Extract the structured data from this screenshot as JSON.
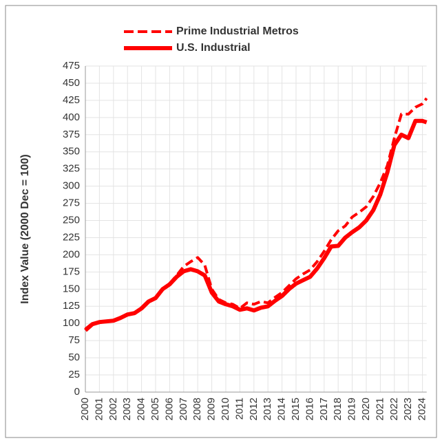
{
  "chart_data": {
    "type": "line",
    "ylabel": "Index Value (2000 Dec = 100)",
    "x": [
      2000,
      2000.5,
      2001,
      2001.5,
      2002,
      2002.5,
      2003,
      2003.5,
      2004,
      2004.5,
      2005,
      2005.5,
      2006,
      2006.5,
      2007,
      2007.5,
      2008,
      2008.5,
      2009,
      2009.5,
      2010,
      2010.5,
      2011,
      2011.5,
      2012,
      2012.5,
      2013,
      2013.5,
      2014,
      2014.5,
      2015,
      2015.5,
      2016,
      2016.5,
      2017,
      2017.5,
      2018,
      2018.5,
      2019,
      2019.5,
      2020,
      2020.5,
      2021,
      2021.5,
      2022,
      2022.5,
      2023,
      2023.5,
      2024,
      2024.3
    ],
    "series": [
      {
        "name": "Prime Industrial Metros",
        "color": "#ff0000",
        "dashed": true,
        "values": [
          92,
          100,
          101,
          103,
          104,
          108,
          114,
          115,
          122,
          132,
          138,
          150,
          158,
          170,
          183,
          190,
          196,
          185,
          150,
          135,
          130,
          128,
          122,
          130,
          128,
          132,
          130,
          138,
          145,
          155,
          165,
          172,
          178,
          190,
          205,
          222,
          235,
          242,
          255,
          262,
          270,
          285,
          305,
          330,
          370,
          405,
          405,
          415,
          420,
          428
        ]
      },
      {
        "name": "U.S. Industrial",
        "color": "#ff0000",
        "dashed": false,
        "values": [
          90,
          99,
          102,
          103,
          104,
          108,
          113,
          115,
          122,
          132,
          137,
          150,
          157,
          168,
          176,
          179,
          176,
          170,
          145,
          132,
          128,
          125,
          120,
          122,
          119,
          123,
          125,
          133,
          140,
          150,
          158,
          163,
          168,
          180,
          195,
          212,
          213,
          225,
          233,
          240,
          250,
          265,
          288,
          320,
          360,
          375,
          370,
          395,
          395,
          393
        ]
      }
    ],
    "xlim": [
      2000,
      2024.3
    ],
    "xticks": [
      2000,
      2001,
      2002,
      2003,
      2004,
      2005,
      2006,
      2007,
      2008,
      2009,
      2010,
      2011,
      2012,
      2013,
      2014,
      2015,
      2016,
      2017,
      2018,
      2019,
      2020,
      2021,
      2022,
      2023,
      2024
    ],
    "ylim": [
      0,
      475
    ],
    "yticks": [
      0,
      25,
      50,
      75,
      100,
      125,
      150,
      175,
      200,
      225,
      250,
      275,
      300,
      325,
      350,
      375,
      400,
      425,
      450,
      475
    ],
    "grid": true,
    "legend": "top"
  }
}
